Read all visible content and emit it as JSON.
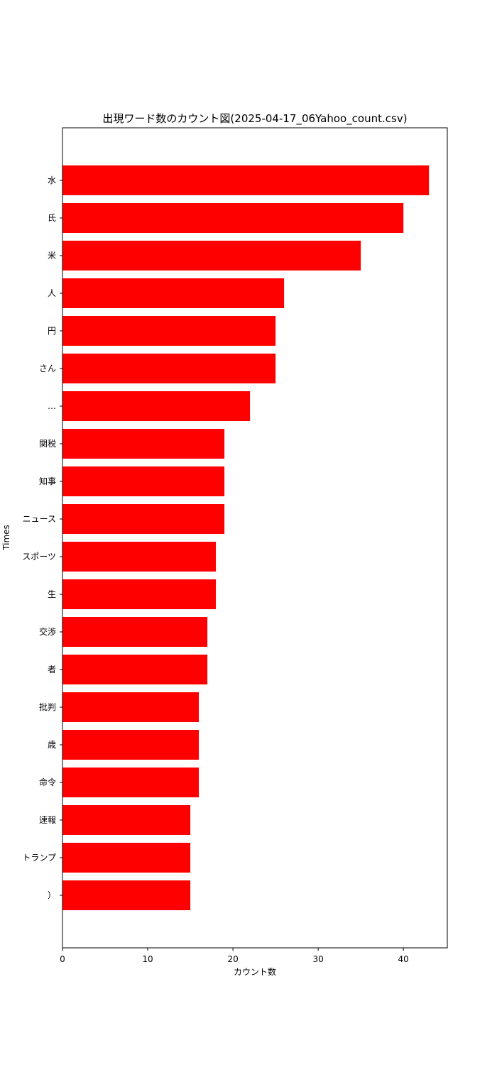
{
  "chart_data": {
    "type": "bar",
    "orientation": "horizontal",
    "title": "出現ワード数のカウント図(2025-04-17_06Yahoo_count.csv)",
    "xlabel": "カウント数",
    "ylabel": "Times",
    "categories": [
      "水",
      "氏",
      "米",
      "人",
      "円",
      "さん",
      "…",
      "関税",
      "知事",
      "ニュース",
      "スポーツ",
      "生",
      "交渉",
      "者",
      "批判",
      "歳",
      "命令",
      "速報",
      "トランプ",
      "）"
    ],
    "values": [
      43,
      40,
      35,
      26,
      25,
      25,
      22,
      19,
      19,
      19,
      18,
      18,
      17,
      17,
      16,
      16,
      16,
      15,
      15,
      15
    ],
    "xlim": [
      0,
      45.15
    ],
    "xticks": [
      0,
      10,
      20,
      30,
      40
    ],
    "bar_color": "#ff0000",
    "grid": false,
    "legend": "none"
  }
}
